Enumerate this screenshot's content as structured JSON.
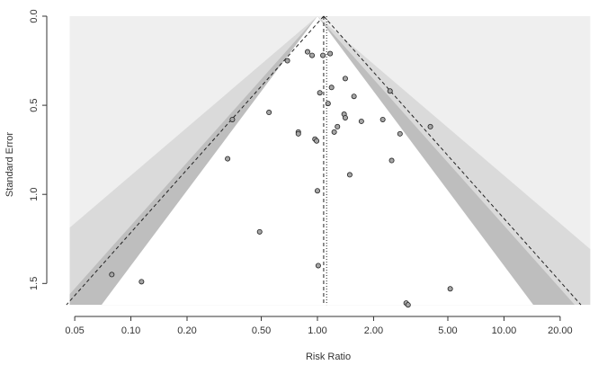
{
  "chart_data": {
    "type": "funnel",
    "x_label": "Risk Ratio",
    "y_label": "Standard Error",
    "x": [
      0.69,
      0.885,
      0.936,
      1.07,
      1.17,
      1.41,
      1.19,
      1.03,
      1.57,
      2.45,
      1.14,
      0.55,
      0.35,
      1.39,
      1.41,
      2.24,
      1.72,
      1.28,
      4.03,
      0.79,
      0.79,
      1.23,
      2.77,
      0.97,
      0.99,
      0.33,
      2.5,
      1.49,
      1.0,
      0.49,
      1.01,
      0.079,
      0.114,
      5.15,
      2.99,
      3.06
    ],
    "y": [
      0.25,
      0.2,
      0.22,
      0.22,
      0.21,
      0.35,
      0.4,
      0.43,
      0.45,
      0.42,
      0.49,
      0.54,
      0.58,
      0.55,
      0.57,
      0.58,
      0.59,
      0.62,
      0.62,
      0.65,
      0.66,
      0.65,
      0.66,
      0.69,
      0.7,
      0.8,
      0.81,
      0.89,
      0.98,
      1.21,
      1.4,
      1.45,
      1.49,
      1.53,
      1.61,
      1.62
    ],
    "point_color": "#a6a6a6",
    "x_log": true,
    "y_inverted": true,
    "xlim": [
      0.04,
      33
    ],
    "ylim": [
      0,
      1.67
    ],
    "xticks": [
      0.05,
      {
        "value": 0.1,
        "label": "0.10"
      },
      {
        "value": 0.2,
        "label": "0.20"
      },
      {
        "value": 0.5,
        "label": "0.50"
      },
      {
        "value": 1,
        "label": "1.00"
      },
      {
        "value": 2,
        "label": "2.00"
      },
      {
        "value": 5,
        "label": "5.00"
      },
      {
        "value": 10,
        "label": "10.00"
      },
      {
        "value": 20,
        "label": "20.00"
      }
    ],
    "yticks": [
      {
        "value": 0,
        "label": "0.0"
      },
      0.5,
      {
        "value": 1,
        "label": "1.0"
      },
      1.5
    ],
    "shade_xlim": [
      0.047,
      29
    ],
    "shade_ylim": [
      0,
      1.62
    ],
    "shade_color": "#efefef",
    "contour_center": 1,
    "contours": [
      {
        "level": 0.99,
        "color": "#dadada"
      },
      {
        "level": 0.95,
        "color": "#bebebe"
      },
      {
        "level": 0.9,
        "color": "#ffffff"
      }
    ],
    "estimate": 1.08,
    "funnel_level": 0.95,
    "refline": 1.12
  }
}
